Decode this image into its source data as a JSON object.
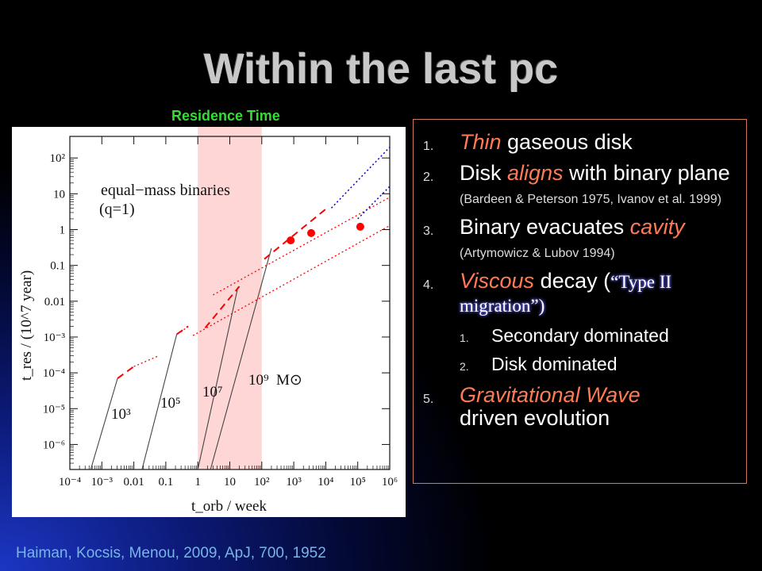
{
  "slide": {
    "title": "Within the last pc",
    "chart_caption": "Residence Time",
    "citation": "Haiman, Kocsis, Menou, 2009, ApJ, 700, 1952"
  },
  "bullets": {
    "items": [
      {
        "num": "1.",
        "accent": "Thin",
        "rest": " gaseous disk"
      },
      {
        "num": "2.",
        "pre": "Disk ",
        "accent": "aligns",
        "rest": " with binary plane ",
        "small": "(Bardeen & Peterson 1975, Ivanov et al. 1999)"
      },
      {
        "num": "3.",
        "pre": "Binary evacuates ",
        "accent": "cavity",
        "small": "(Artymowicz & Lubov 1994)"
      },
      {
        "num": "4.",
        "accent": "Viscous",
        "rest": " decay (",
        "quote": "“Type II migration”)",
        "sub": [
          {
            "num": "1.",
            "text": "Secondary dominated"
          },
          {
            "num": "2.",
            "text": "Disk dominated"
          }
        ]
      },
      {
        "num": "5.",
        "accent": "Gravitational Wave",
        "rest": " driven evolution"
      }
    ]
  },
  "chart_data": {
    "type": "line",
    "xlabel": "t_orb / week",
    "ylabel": "t_res / (10^7 year)",
    "xscale": "log",
    "yscale": "log",
    "xlim": [
      0.0001,
      1000000
    ],
    "ylim": [
      2e-07,
      400
    ],
    "x_ticks": [
      "10⁻⁴",
      "10⁻³",
      "0.01",
      "0.1",
      "1",
      "10",
      "10²",
      "10³",
      "10⁴",
      "10⁵",
      "10⁶"
    ],
    "y_ticks": [
      "10²",
      "10",
      "1",
      "0.1",
      "0.01",
      "10⁻³",
      "10⁻⁴",
      "10⁻⁵",
      "10⁻⁶"
    ],
    "shaded_band": [
      1,
      100
    ],
    "annotations": {
      "label_line1": "equal−mass binaries",
      "label_line2": "(q=1)",
      "mass_labels": [
        "10³",
        "10⁵",
        "10⁷",
        "10⁹",
        "M⊙"
      ]
    },
    "colors": {
      "gw": "#444444",
      "disk": "#ff0000",
      "gw_extrap": "#0000cc",
      "band": "#ffd6d6"
    },
    "series": [
      {
        "mass": "10³",
        "gw": [
          [
            0.00045,
            2e-07
          ],
          [
            0.0031,
            7e-05
          ]
        ],
        "dashed": [
          [
            0.0031,
            7e-05
          ],
          [
            0.01,
            0.00015
          ]
        ],
        "dotted": [
          [
            0.01,
            0.00015
          ],
          [
            0.06,
            0.0003
          ]
        ]
      },
      {
        "mass": "10⁵",
        "gw": [
          [
            0.018,
            2e-07
          ],
          [
            0.22,
            0.0012
          ]
        ],
        "dashed": [
          [
            0.22,
            0.0012
          ],
          [
            0.5,
            0.002
          ]
        ],
        "dotted": [
          [
            0.5,
            0.002
          ],
          [
            0.3,
            0.0014
          ]
        ]
      },
      {
        "mass": "10⁷",
        "gw": [
          [
            1,
            2e-07
          ],
          [
            18,
            0.025
          ]
        ],
        "dashed": [
          [
            1.7,
            0.0018
          ],
          [
            20,
            0.026
          ]
        ],
        "dotted": [
          [
            0.7,
            0.0011
          ],
          [
            1000000,
            1.3
          ]
        ]
      },
      {
        "mass": "10⁹",
        "gw": [
          [
            2.5,
            2e-07
          ],
          [
            200,
            0.3
          ]
        ],
        "dashed": [
          [
            120,
            0.15
          ],
          [
            11000,
            4
          ]
        ],
        "dotted": [
          [
            3,
            0.015
          ],
          [
            1000000,
            8
          ]
        ]
      }
    ],
    "markers": [
      [
        800,
        0.5
      ],
      [
        3500,
        0.8
      ],
      [
        120000,
        1.2
      ]
    ],
    "extrapolations": [
      {
        "points": [
          [
            15000,
            4
          ],
          [
            1000000,
            200
          ]
        ]
      },
      {
        "points": [
          [
            100000,
            2
          ],
          [
            1000000,
            16
          ]
        ]
      }
    ]
  }
}
